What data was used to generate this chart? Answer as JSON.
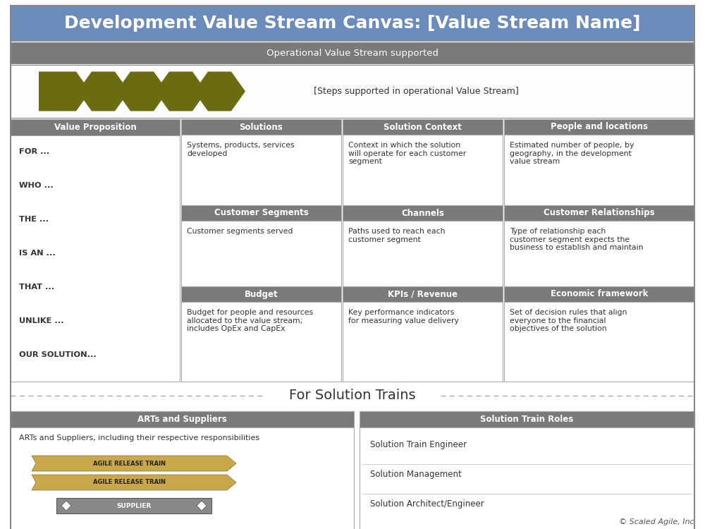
{
  "title": "Development Value Stream Canvas: [Value Stream Name]",
  "title_bg": "#6b8cba",
  "title_color": "#ffffff",
  "title_fontsize": 18,
  "ops_bar_text": "Operational Value Stream supported",
  "ops_bar_bg": "#7a7a7a",
  "ops_bar_color": "#ffffff",
  "arrow_color": "#6b6b10",
  "arrow_label": "[Steps supported in operational Value Stream]",
  "section_header_bg": "#7a7a7a",
  "section_header_color": "#ffffff",
  "section_body_bg": "#ffffff",
  "section_border": "#aaaaaa",
  "section_text_color": "#333333",
  "vp_header": "Value Proposition",
  "vp_items": [
    "FOR ...",
    "WHO ...",
    "THE ...",
    "IS AN ...",
    "THAT ...",
    "UNLIKE ...",
    "OUR SOLUTION..."
  ],
  "sol_header": "Solutions",
  "sol_body": "Systems, products, services\ndeveloped",
  "ctx_header": "Solution Context",
  "ctx_body": "Context in which the solution\nwill operate for each customer\nsegment",
  "ppl_header": "People and locations",
  "ppl_body": "Estimated number of people, by\ngeography, in the development\nvalue stream",
  "cs_header": "Customer Segments",
  "cs_body": "Customer segments served",
  "ch_header": "Channels",
  "ch_body": "Paths used to reach each\ncustomer segment",
  "cr_header": "Customer Relationships",
  "cr_body": "Type of relationship each\ncustomer segment expects the\nbusiness to establish and maintain",
  "bud_header": "Budget",
  "bud_body": "Budget for people and resources\nallocated to the value stream;\nincludes OpEx and CapEx",
  "kpi_header": "KPIs / Revenue",
  "kpi_body": "Key performance indicators\nfor measuring value delivery",
  "eco_header": "Economic framework",
  "eco_body": "Set of decision rules that align\neveryone to the financial\nobjectives of the solution",
  "solution_trains_text": "For Solution Trains",
  "arts_header": "ARTs and Suppliers",
  "arts_body": "ARTs and Suppliers, including their respective responsibilities",
  "str_header": "Solution Train Roles",
  "str_items": [
    "Solution Train Engineer",
    "Solution Management",
    "Solution Architect/Engineer"
  ],
  "footer_text": "© Scaled Agile, Inc",
  "bg_color": "#ffffff",
  "outer_border": "#aaaaaa",
  "train_color1": "#c8a84b",
  "train_color2": "#c8a84b",
  "supplier_color": "#888888"
}
